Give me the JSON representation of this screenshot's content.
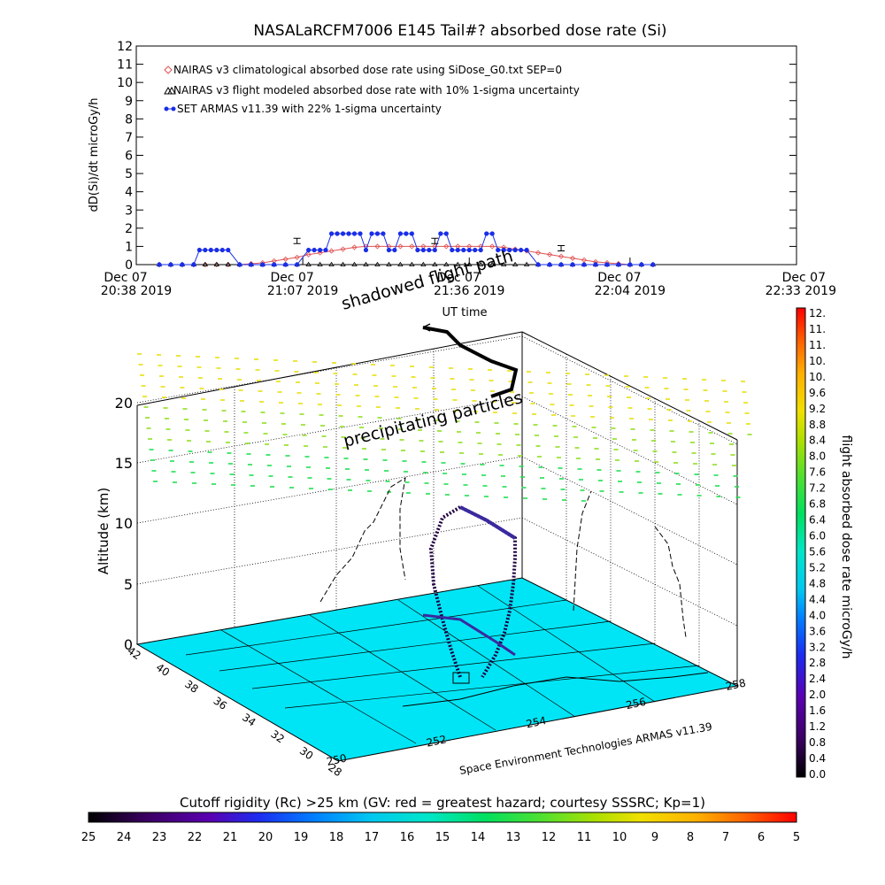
{
  "chart_data": [
    {
      "type": "line",
      "title": "NASALaRCFM7006  E145 Tail#? absorbed dose rate (Si)",
      "ylabel": "dD(Si)/dt microGy/h",
      "xlabel": "UT time",
      "ylim": [
        0,
        12
      ],
      "y_ticks": [
        "0",
        "1",
        "2",
        "3",
        "4",
        "5",
        "6",
        "7",
        "8",
        "9",
        "10",
        "11",
        "12"
      ],
      "x_ticks": [
        {
          "date": "Dec 07",
          "time": "20:38 2019"
        },
        {
          "date": "Dec 07",
          "time": "21:07 2019"
        },
        {
          "date": "Dec 07",
          "time": "21:36 2019"
        },
        {
          "date": "Dec 07",
          "time": "22:04 2019"
        },
        {
          "date": "Dec 07",
          "time": "22:33 2019"
        }
      ],
      "x_minutes": [
        0,
        29,
        58,
        86,
        115
      ],
      "legend": [
        "NAIRAS v3 climatological absorbed dose rate using SiDose_G0.txt SEP=0",
        "NAIRAS v3 flight modeled absorbed dose rate with 10% 1-sigma uncertainty",
        "SET ARMAS v11.39 with 22% 1-sigma uncertainty"
      ],
      "series": [
        {
          "name": "NAIRAS v3 climatological absorbed dose rate using SiDose_G0.txt SEP=0",
          "color": "#e05050",
          "marker": "diamond",
          "x": [
            4,
            6,
            8,
            10,
            12,
            14,
            16,
            18,
            20,
            22,
            24,
            26,
            28,
            30,
            32,
            34,
            36,
            38,
            40,
            42,
            44,
            46,
            48,
            50,
            52,
            54,
            56,
            58,
            60,
            62,
            64,
            66,
            68,
            70,
            72,
            74,
            76,
            78,
            80,
            82,
            84,
            86,
            88,
            90
          ],
          "values": [
            0,
            0,
            0,
            0,
            0,
            0,
            0,
            0,
            0.05,
            0.1,
            0.2,
            0.3,
            0.4,
            0.55,
            0.65,
            0.75,
            0.85,
            0.95,
            1.0,
            1.0,
            1.0,
            1.0,
            1.0,
            1.0,
            1.0,
            1.0,
            1.0,
            1.0,
            1.0,
            1.0,
            0.95,
            0.85,
            0.75,
            0.65,
            0.55,
            0.45,
            0.35,
            0.25,
            0.15,
            0.1,
            0.05,
            0,
            0,
            0
          ]
        },
        {
          "name": "NAIRAS v3 flight modeled absorbed dose rate with 10% 1-sigma uncertainty",
          "color": "#000000",
          "marker": "triangle",
          "x": [
            4,
            6,
            8,
            10,
            12,
            14,
            16,
            18,
            20,
            22,
            24,
            26,
            28,
            30,
            32,
            34,
            36,
            38,
            40,
            42,
            44,
            46,
            48,
            50,
            52,
            54,
            56,
            58,
            60,
            62,
            64,
            66,
            68,
            70,
            72,
            74,
            76,
            78,
            80,
            82,
            84,
            86,
            88,
            90
          ],
          "values": [
            0,
            0,
            0,
            0,
            0,
            0,
            0,
            0,
            0,
            0,
            0,
            0,
            0,
            0,
            0,
            0,
            0,
            0,
            0,
            0,
            0,
            0,
            0,
            0,
            0,
            0,
            0,
            0,
            0,
            0,
            0,
            0,
            0,
            0,
            0,
            0,
            0,
            0,
            0,
            0,
            0,
            0,
            0,
            0
          ]
        },
        {
          "name": "SET ARMAS v11.39 with 22% 1-sigma uncertainty",
          "color": "#1a2ee8",
          "marker": "circle",
          "x": [
            4,
            6,
            8,
            10,
            11,
            12,
            13,
            14,
            15,
            16,
            18,
            20,
            22,
            24,
            26,
            28,
            30,
            31,
            32,
            33,
            34,
            35,
            36,
            37,
            38,
            39,
            40,
            41,
            42,
            43,
            44,
            45,
            46,
            47,
            48,
            49,
            50,
            51,
            52,
            53,
            54,
            55,
            56,
            57,
            58,
            59,
            60,
            61,
            62,
            63,
            64,
            65,
            66,
            67,
            68,
            70,
            72,
            74,
            76,
            78,
            80,
            82,
            84,
            86,
            88,
            90
          ],
          "values": [
            0,
            0,
            0,
            0,
            0.8,
            0.8,
            0.8,
            0.8,
            0.8,
            0.8,
            0,
            0,
            0,
            0,
            0,
            0,
            0.8,
            0.8,
            0.8,
            0.8,
            1.7,
            1.7,
            1.7,
            1.7,
            1.7,
            1.7,
            0.8,
            1.7,
            1.7,
            1.7,
            0.8,
            0.8,
            1.7,
            1.7,
            1.7,
            0.8,
            0.8,
            0.8,
            0.8,
            1.7,
            1.7,
            0.8,
            0.8,
            0.8,
            0.8,
            0.8,
            0.8,
            1.7,
            1.7,
            0.8,
            0.8,
            0.8,
            0.8,
            0.8,
            0.8,
            0,
            0,
            0,
            0,
            0,
            0,
            0,
            0,
            0,
            0,
            0
          ]
        }
      ]
    },
    {
      "type": "scatter",
      "zlabel": "Altitude (km)",
      "xlabel": "Space Environment Technologies ARMAS v11.39",
      "z_ticks": [
        "0",
        "5",
        "10",
        "15",
        "20"
      ],
      "lat_ticks": [
        "42",
        "40",
        "38",
        "36",
        "34",
        "32",
        "30",
        "28"
      ],
      "lon_ticks": [
        "250",
        "252",
        "254",
        "256",
        "258"
      ],
      "annotations": [
        "shadowed flight path",
        "precipitating particles"
      ],
      "colorbar": {
        "label": "flight absorbed dose rate microGy/h",
        "ticks": [
          "12.",
          "11.",
          "11.",
          "10.",
          "10.",
          "9.6",
          "9.2",
          "8.8",
          "8.4",
          "8.0",
          "7.6",
          "7.2",
          "6.8",
          "6.4",
          "6.0",
          "5.6",
          "5.2",
          "4.8",
          "4.4",
          "4.0",
          "3.6",
          "3.2",
          "2.8",
          "2.4",
          "2.0",
          "1.6",
          "1.2",
          "0.8",
          "0.4",
          "0.0"
        ]
      },
      "rigidity_bar": {
        "label": "Cutoff rigidity (Rc) >25 km (GV: red = greatest hazard; courtesy SSSRC; Kp=1)",
        "ticks": [
          "25",
          "24",
          "23",
          "22",
          "21",
          "20",
          "19",
          "18",
          "17",
          "16",
          "15",
          "14",
          "13",
          "12",
          "11",
          "10",
          "9",
          "8",
          "7",
          "6",
          "5"
        ]
      }
    }
  ],
  "colors": {
    "ground": "#00e5f5",
    "colormap": [
      "#000000",
      "#3a0060",
      "#5a00b0",
      "#1c2cf0",
      "#0080ff",
      "#00c8f0",
      "#00e6c8",
      "#00e060",
      "#50e030",
      "#b0e000",
      "#f0e000",
      "#ffb000",
      "#ff6000",
      "#ff0000"
    ]
  }
}
